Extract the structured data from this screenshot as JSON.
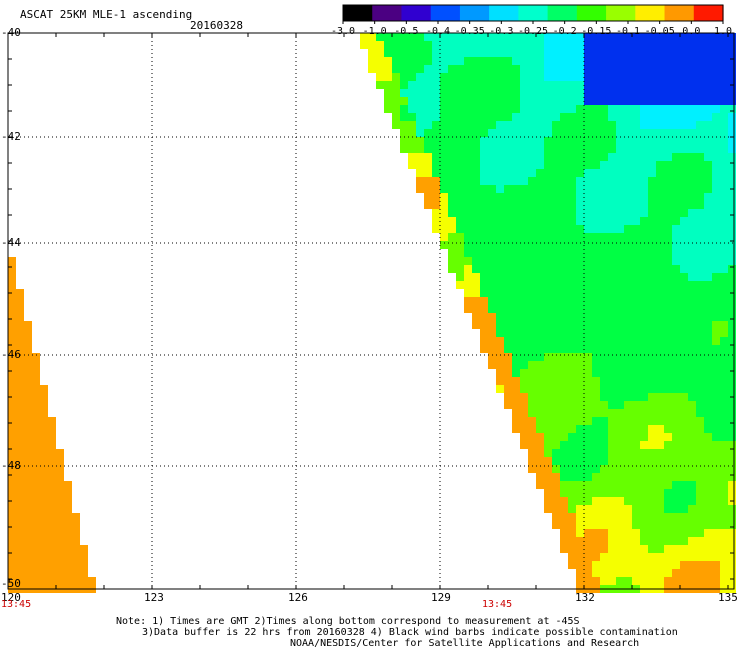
{
  "header": {
    "title": "ASCAT 25KM MLE-1 ascending",
    "date": "20160328"
  },
  "colorbar": {
    "labels": [
      "-3.0",
      "-1.0",
      "-0.5",
      "-0.4",
      "-0.35",
      "-0.3",
      "-0.25",
      "-0.2",
      "-0.15",
      "-0.1",
      "-0.05",
      "0.0",
      "1.0"
    ],
    "colors": [
      "#000000",
      "#4b0082",
      "#3000d0",
      "#0050ff",
      "#0099ff",
      "#00e0ff",
      "#00ffcc",
      "#00ff66",
      "#33ff00",
      "#99ff00",
      "#ffee00",
      "#ff9900",
      "#ff1a00"
    ]
  },
  "map": {
    "lat_labels": [
      "-40",
      "-42",
      "-44",
      "-46",
      "-48",
      "-50"
    ],
    "lon_labels": [
      "120",
      "123",
      "126",
      "129",
      "132",
      "135"
    ],
    "lat_range": [
      -50,
      -40
    ],
    "lon_range": [
      120,
      135
    ]
  },
  "times": {
    "left": "13:45",
    "mid": "13:45"
  },
  "notes": {
    "line1": "Note: 1) Times are GMT 2)Times along bottom correspond to measurement at -45S",
    "line2": "3)Data buffer is 22 hrs from 20160328 4) Black wind barbs indicate possible contamination",
    "line3": "NOAA/NESDIS/Center for Satellite Applications and Research"
  }
}
